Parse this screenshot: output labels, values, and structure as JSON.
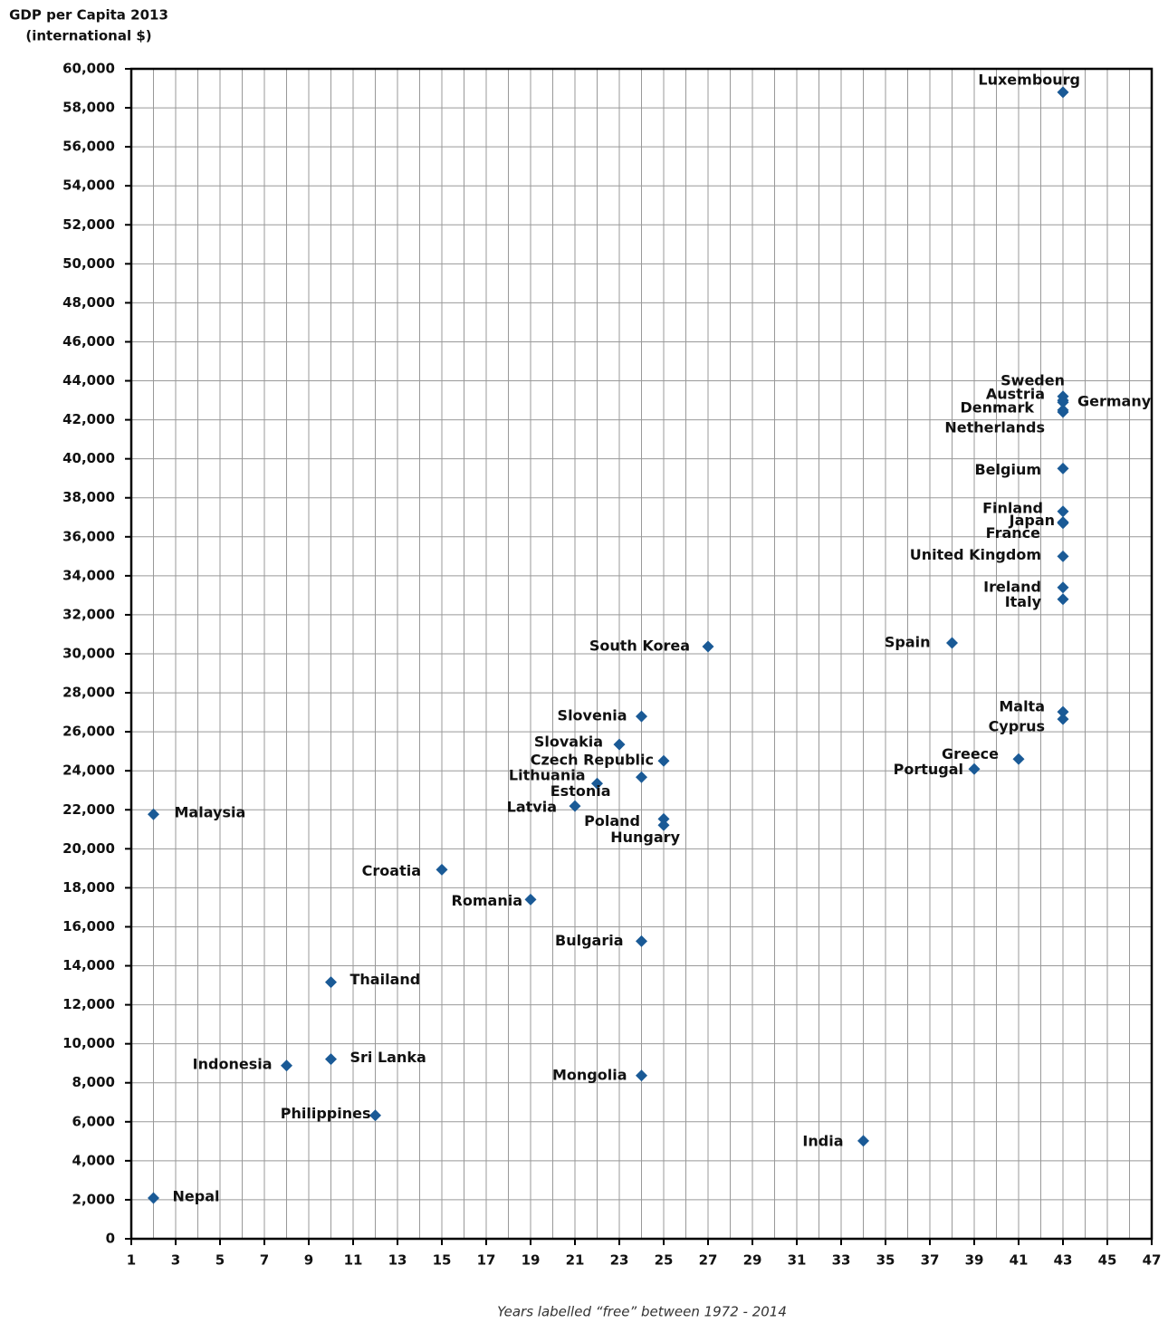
{
  "chart_data": {
    "type": "scatter",
    "ylabel": [
      "GDP per Capita 2013",
      "(international $)"
    ],
    "xlabel": "Years labelled “free” between 1972 - 2014",
    "color": "#1a5a96",
    "grid": true,
    "labels": [
      "Luxembourg",
      "Sweden",
      "Austria",
      "Germany",
      "Denmark",
      "Netherlands",
      "Belgium",
      "Finland",
      "Japan",
      "France",
      "United Kingdom",
      "Ireland",
      "Italy",
      "Spain",
      "South Korea",
      "Malta",
      "Cyprus",
      "Greece",
      "Portugal",
      "Slovenia",
      "Slovakia",
      "Czech Republic",
      "Lithuania",
      "Estonia",
      "Latvia",
      "Poland",
      "Hungary",
      "Malaysia",
      "Croatia",
      "Romania",
      "Bulgaria",
      "Thailand",
      "Sri Lanka",
      "Indonesia",
      "Mongolia",
      "Philippines",
      "India",
      "Nepal"
    ],
    "x": [
      43,
      43,
      43,
      43,
      43,
      43,
      43,
      43,
      43,
      43,
      43,
      43,
      43,
      38,
      27,
      43,
      43,
      41,
      39,
      24,
      23,
      25,
      22,
      24,
      21,
      25,
      25,
      2,
      15,
      19,
      24,
      10,
      10,
      8,
      24,
      12,
      34,
      2
    ],
    "values": [
      58800,
      43200,
      43000,
      42900,
      42500,
      42400,
      39500,
      37300,
      36750,
      36700,
      35000,
      33400,
      32800,
      30560,
      30370,
      27020,
      26650,
      24600,
      24090,
      26790,
      25350,
      24510,
      23350,
      23670,
      22190,
      21530,
      21210,
      21770,
      18930,
      17400,
      15260,
      13160,
      9210,
      8880,
      8370,
      6330,
      5020,
      2090
    ],
    "xlim": [
      1,
      47
    ],
    "xticks": [
      1,
      3,
      5,
      7,
      9,
      11,
      13,
      15,
      17,
      19,
      21,
      23,
      25,
      27,
      29,
      31,
      33,
      35,
      37,
      39,
      41,
      43,
      45,
      47
    ],
    "xgrid_minor": [
      2,
      4,
      6,
      8,
      10,
      12,
      14,
      16,
      18,
      20,
      22,
      24,
      26,
      28,
      30,
      32,
      34,
      36,
      38,
      40,
      42,
      44,
      46
    ],
    "ylim": [
      0,
      60000
    ],
    "yticks": [
      0,
      {
        "value": 2000,
        "label": "2,000"
      },
      {
        "value": 4000,
        "label": "4,000"
      },
      {
        "value": 6000,
        "label": "6,000"
      },
      {
        "value": 8000,
        "label": "8,000"
      },
      {
        "value": 10000,
        "label": "10,000"
      },
      {
        "value": 12000,
        "label": "12,000"
      },
      {
        "value": 14000,
        "label": "14,000"
      },
      {
        "value": 16000,
        "label": "16,000"
      },
      {
        "value": 18000,
        "label": "18,000"
      },
      {
        "value": 20000,
        "label": "20,000"
      },
      {
        "value": 22000,
        "label": "22,000"
      },
      {
        "value": 24000,
        "label": "24,000"
      },
      {
        "value": 26000,
        "label": "26,000"
      },
      {
        "value": 28000,
        "label": "28,000"
      },
      {
        "value": 30000,
        "label": "30,000"
      },
      {
        "value": 32000,
        "label": "32,000"
      },
      {
        "value": 34000,
        "label": "34,000"
      },
      {
        "value": 36000,
        "label": "36,000"
      },
      {
        "value": 38000,
        "label": "38,000"
      },
      {
        "value": 40000,
        "label": "40,000"
      },
      {
        "value": 42000,
        "label": "42,000"
      },
      {
        "value": 44000,
        "label": "44,000"
      },
      {
        "value": 46000,
        "label": "46,000"
      },
      {
        "value": 48000,
        "label": "48,000"
      },
      {
        "value": 50000,
        "label": "50,000"
      },
      {
        "value": 52000,
        "label": "52,000"
      },
      {
        "value": 54000,
        "label": "54,000"
      },
      {
        "value": 56000,
        "label": "56,000"
      },
      {
        "value": 58000,
        "label": "58,000"
      },
      {
        "value": 60000,
        "label": "60,000"
      }
    ]
  }
}
